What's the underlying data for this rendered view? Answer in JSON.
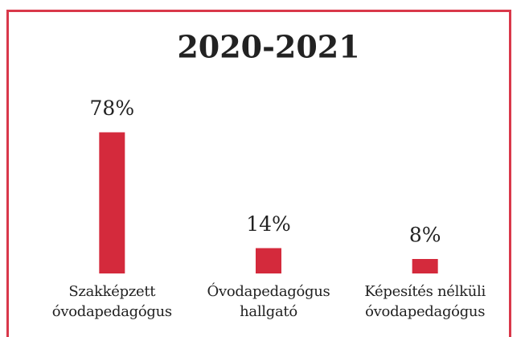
{
  "chart_data": {
    "type": "bar",
    "title": "2020-2021",
    "categories": [
      "Szakképzett óvodapedagógus",
      "Óvodapedagógus hallgató",
      "Képesítés nélküli óvodapedagógus"
    ],
    "values": [
      78,
      14,
      8
    ],
    "value_labels": [
      "78%",
      "14%",
      "8%"
    ],
    "color": "#d42a3c",
    "ylim": [
      0,
      100
    ]
  }
}
